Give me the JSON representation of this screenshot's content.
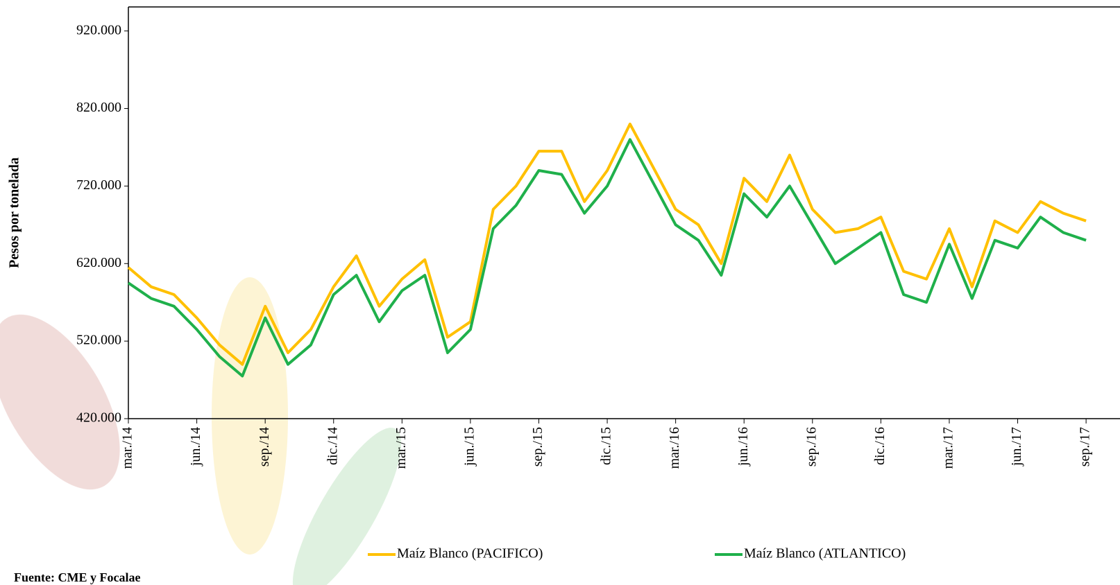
{
  "chart_data": {
    "type": "line",
    "y_label": "Pesos por tonelada",
    "source": "Fuente: CME y Focalae",
    "categories": [
      "mar./14",
      null,
      null,
      "jun./14",
      null,
      null,
      "sep./14",
      null,
      null,
      "dic./14",
      null,
      null,
      "mar./15",
      null,
      null,
      "jun./15",
      null,
      null,
      "sep./15",
      null,
      null,
      "dic./15",
      null,
      null,
      "mar./16",
      null,
      null,
      "jun./16",
      null,
      null,
      "sep./16",
      null,
      null,
      "dic./16",
      null,
      null,
      "mar./17",
      null,
      null,
      "jun./17",
      null,
      null,
      "sep./17"
    ],
    "series": [
      {
        "name": "Maíz Blanco (PACIFICO)",
        "color": "#ffc000",
        "values": [
          615000,
          590000,
          580000,
          550000,
          515000,
          490000,
          565000,
          505000,
          535000,
          590000,
          630000,
          565000,
          600000,
          625000,
          525000,
          545000,
          690000,
          720000,
          765000,
          765000,
          700000,
          740000,
          800000,
          745000,
          690000,
          670000,
          620000,
          730000,
          700000,
          760000,
          690000,
          660000,
          665000,
          680000,
          610000,
          600000,
          665000,
          590000,
          675000,
          660000,
          700000,
          685000,
          675000
        ]
      },
      {
        "name": "Maíz Blanco (ATLANTICO)",
        "color": "#1fb04b",
        "values": [
          595000,
          575000,
          565000,
          535000,
          500000,
          475000,
          550000,
          490000,
          515000,
          580000,
          605000,
          545000,
          585000,
          605000,
          505000,
          535000,
          665000,
          695000,
          740000,
          735000,
          685000,
          720000,
          780000,
          725000,
          670000,
          650000,
          605000,
          710000,
          680000,
          720000,
          670000,
          620000,
          640000,
          660000,
          580000,
          570000,
          645000,
          575000,
          650000,
          640000,
          680000,
          660000,
          650000
        ]
      }
    ],
    "ylim": [
      420000,
      951000
    ],
    "yticks": [
      {
        "value": 420000,
        "label": "420.000"
      },
      {
        "value": 520000,
        "label": "520.000"
      },
      {
        "value": 620000,
        "label": "620.000"
      },
      {
        "value": 720000,
        "label": "720.000"
      },
      {
        "value": 820000,
        "label": "820.000"
      },
      {
        "value": 920000,
        "label": "920.000"
      }
    ],
    "grid": false,
    "legend": "bottom"
  }
}
